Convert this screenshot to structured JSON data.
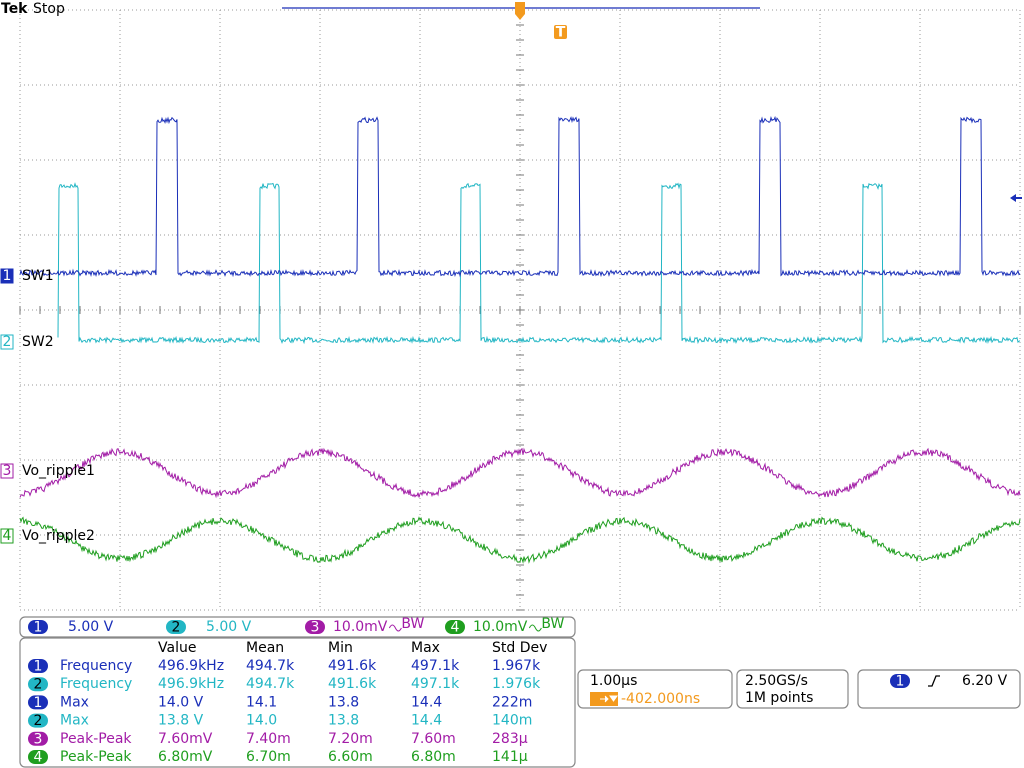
{
  "header": {
    "brand": "Tek",
    "status": "Stop"
  },
  "markers": {
    "trigger": "T"
  },
  "channels": [
    {
      "number": "1",
      "label": "SW1",
      "scale": "5.00 V",
      "color": "#1a2fb8"
    },
    {
      "number": "2",
      "label": "SW2",
      "scale": "5.00 V",
      "color": "#22b6c4"
    },
    {
      "number": "3",
      "label": "Vo_ripple1",
      "scale": "10.0mV",
      "bw": "BW",
      "color": "#a21ca6"
    },
    {
      "number": "4",
      "label": "Vo_ripple2",
      "scale": "10.0mV",
      "bw": "BW",
      "color": "#1f9e1f"
    }
  ],
  "measurements": {
    "columns": [
      "Value",
      "Mean",
      "Min",
      "Max",
      "Std Dev"
    ],
    "rows": [
      {
        "channel": "1",
        "name": "Frequency",
        "values": [
          "496.9kHz",
          "494.7k",
          "491.6k",
          "497.1k",
          "1.967k"
        ]
      },
      {
        "channel": "2",
        "name": "Frequency",
        "values": [
          "496.9kHz",
          "494.7k",
          "491.6k",
          "497.1k",
          "1.976k"
        ]
      },
      {
        "channel": "1",
        "name": "Max",
        "values": [
          "14.0 V",
          "14.1",
          "13.8",
          "14.4",
          "222m"
        ]
      },
      {
        "channel": "2",
        "name": "Max",
        "values": [
          "13.8 V",
          "14.0",
          "13.8",
          "14.4",
          "140m"
        ]
      },
      {
        "channel": "3",
        "name": "Peak-Peak",
        "values": [
          "7.60mV",
          "7.40m",
          "7.20m",
          "7.60m",
          "283µ"
        ]
      },
      {
        "channel": "4",
        "name": "Peak-Peak",
        "values": [
          "6.80mV",
          "6.70m",
          "6.60m",
          "6.80m",
          "141µ"
        ]
      }
    ]
  },
  "timebase": {
    "scale": "1.00µs",
    "trigger_position": "-402.000ns"
  },
  "acquisition": {
    "rate": "2.50GS/s",
    "points": "1M points"
  },
  "trigger": {
    "source": "1",
    "level": "6.20 V"
  }
}
